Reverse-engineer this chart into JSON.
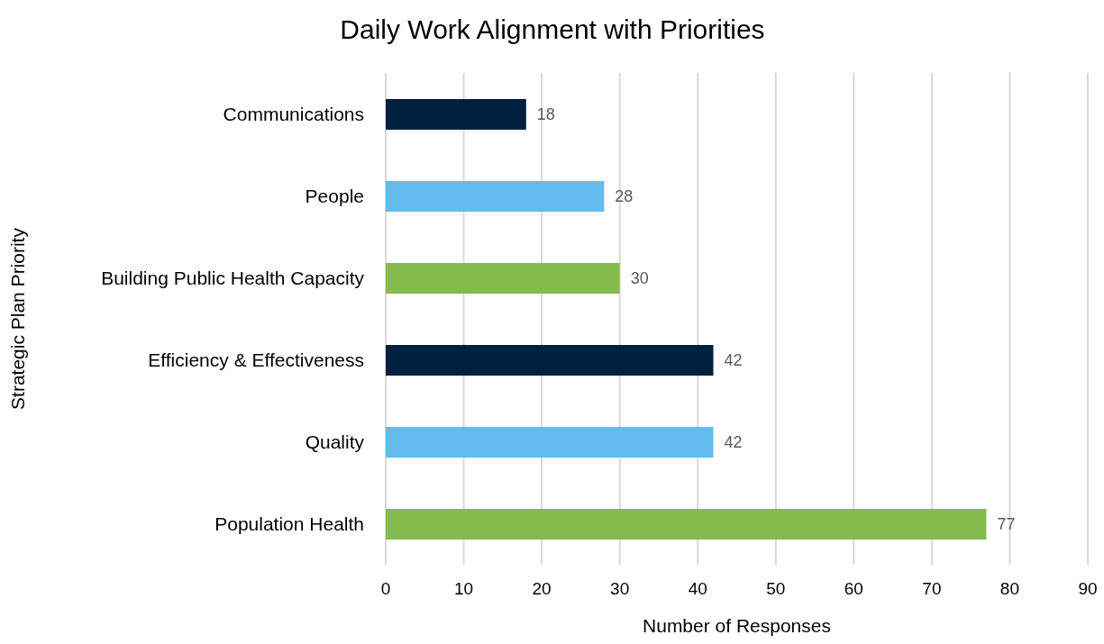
{
  "chart_data": {
    "type": "bar",
    "orientation": "horizontal",
    "title": "Daily Work Alignment with Priorities",
    "xlabel": "Number of Responses",
    "ylabel": "Strategic Plan Priority",
    "categories": [
      "Communications",
      "People",
      "Building Public Health Capacity",
      "Efficiency & Effectiveness",
      "Quality",
      "Population Health"
    ],
    "values": [
      18,
      28,
      30,
      42,
      42,
      77
    ],
    "colors": [
      "#002040",
      "#63bbee",
      "#84bb4c",
      "#002040",
      "#63bbee",
      "#84bb4c"
    ],
    "xlim": [
      0,
      90
    ],
    "xticks": [
      0,
      10,
      20,
      30,
      40,
      50,
      60,
      70,
      80,
      90
    ],
    "grid": "x",
    "data_labels": true,
    "legend": false
  }
}
